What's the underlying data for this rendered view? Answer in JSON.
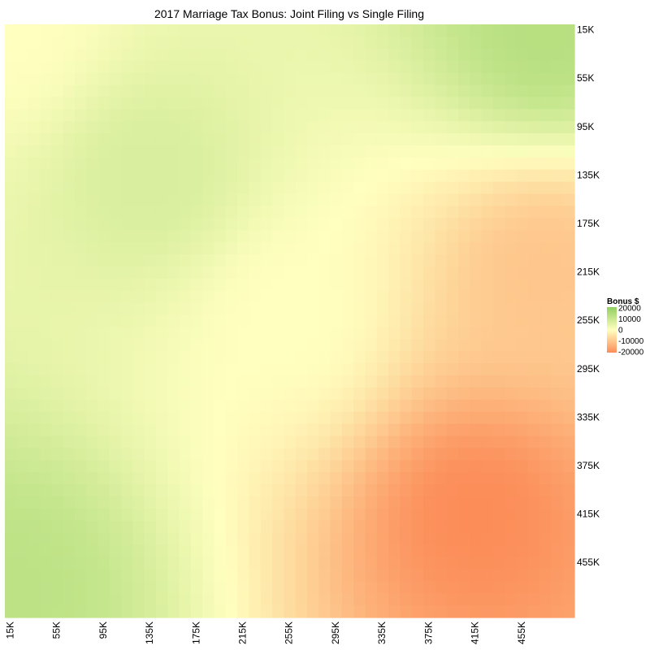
{
  "chart_data": {
    "type": "heatmap",
    "title": "2017 Marriage Tax Bonus: Joint Filing vs Single Filing",
    "xlabel": "",
    "ylabel": "",
    "x_ticks": [
      "15K",
      "55K",
      "95K",
      "135K",
      "175K",
      "215K",
      "255K",
      "295K",
      "335K",
      "375K",
      "415K",
      "455K"
    ],
    "y_ticks": [
      "15K",
      "55K",
      "95K",
      "135K",
      "175K",
      "215K",
      "255K",
      "295K",
      "335K",
      "375K",
      "415K",
      "455K"
    ],
    "x_range": [
      10,
      500
    ],
    "y_range": [
      10,
      500
    ],
    "grid_step": 10,
    "value_samples": [
      {
        "x": 15,
        "y": 15,
        "value": 0
      },
      {
        "x": 135,
        "y": 135,
        "value": 7000
      },
      {
        "x": 475,
        "y": 15,
        "value": 13000
      },
      {
        "x": 15,
        "y": 475,
        "value": 12000
      },
      {
        "x": 255,
        "y": 255,
        "value": 0
      },
      {
        "x": 475,
        "y": 215,
        "value": -10000
      },
      {
        "x": 415,
        "y": 415,
        "value": -20000
      }
    ],
    "legend": {
      "title": "Bonus $",
      "ticks": [
        "20000",
        "10000",
        "0",
        "-10000",
        "-20000"
      ],
      "range": [
        -20000,
        20000
      ],
      "colors": {
        "low": "#fc8d59",
        "mid": "#ffffbf",
        "high": "#91cf60"
      },
      "placement": "right"
    },
    "grid": false
  }
}
